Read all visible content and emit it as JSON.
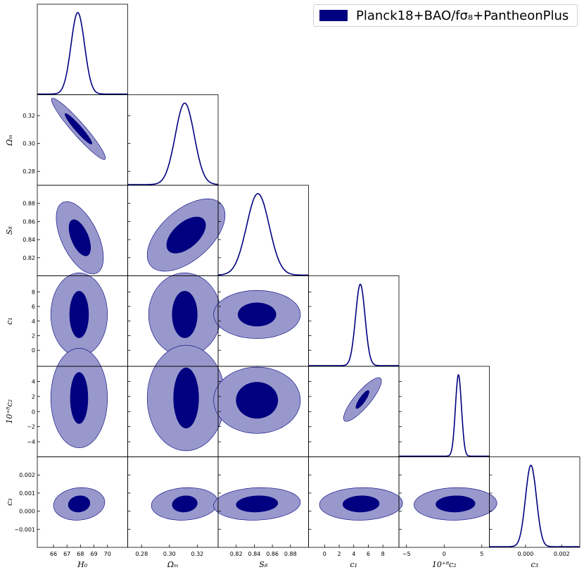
{
  "legend": {
    "label": "Planck18+BAO/fσ₈+PantheonPlus"
  },
  "colors": {
    "dark": "#000080",
    "light": "#9898cc",
    "frame": "#000000"
  },
  "chart_data": {
    "type": "triangle-corner",
    "title": "",
    "series": [
      {
        "name": "Planck18+BAO/fσ₈+PantheonPlus"
      }
    ],
    "parameters": [
      {
        "key": "H0",
        "label": "H₀",
        "range": [
          64.8,
          71.5
        ],
        "ticks": [
          66,
          67,
          68,
          69,
          70
        ],
        "tick_labels": [
          "66",
          "67",
          "68",
          "69",
          "70"
        ],
        "mean": 67.8,
        "sd": 0.5
      },
      {
        "key": "Om",
        "label": "Ωₘ",
        "range": [
          0.27,
          0.335
        ],
        "ticks": [
          0.28,
          0.3,
          0.32
        ],
        "tick_labels": [
          "0.28",
          "0.30",
          "0.32"
        ],
        "mean": 0.311,
        "sd": 0.0068
      },
      {
        "key": "S8",
        "label": "S₈",
        "range": [
          0.8,
          0.9
        ],
        "ticks": [
          0.82,
          0.84,
          0.86,
          0.88
        ],
        "tick_labels": [
          "0.82",
          "0.84",
          "0.86",
          "0.88"
        ],
        "mean": 0.844,
        "sd": 0.0125
      },
      {
        "key": "c1",
        "label": "c₁",
        "range": [
          -2.2,
          10.2
        ],
        "ticks": [
          0,
          2,
          4,
          6,
          8
        ],
        "tick_labels": [
          "0",
          "2",
          "4",
          "6",
          "8"
        ],
        "mean": 4.9,
        "sd": 0.65
      },
      {
        "key": "c2",
        "label": "10⁺⁸c₂",
        "range": [
          -6.0,
          6.0
        ],
        "ticks": [
          -4,
          -2,
          0,
          2,
          4
        ],
        "tick_labels": [
          "−4",
          "−2",
          "0",
          "2",
          "4"
        ],
        "diag_ticks": [
          -5,
          0,
          5
        ],
        "diag_tick_labels": [
          "−5",
          "0",
          "5"
        ],
        "mean": 1.9,
        "sd": 0.4
      },
      {
        "key": "c3",
        "label": "c₃",
        "range": [
          -0.002,
          0.003
        ],
        "ticks": [
          -0.001,
          0.0,
          0.001,
          0.002
        ],
        "tick_labels": [
          "−0.001",
          "0.000",
          "0.001",
          "0.002"
        ],
        "diag_ticks": [
          0.0,
          0.002
        ],
        "diag_tick_labels": [
          "0.000",
          "0.002"
        ],
        "mean": 0.0003,
        "sd": 0.0003
      }
    ],
    "contours_2d": [
      {
        "x": "H0",
        "y": "Om",
        "cx": 67.85,
        "cy": 0.3105,
        "r68": [
          1.0,
          0.011
        ],
        "r95": [
          2.0,
          0.022
        ],
        "corr": -0.95
      },
      {
        "x": "H0",
        "y": "S8",
        "cx": 67.95,
        "cy": 0.842,
        "r68": [
          0.8,
          0.02
        ],
        "r95": [
          1.75,
          0.04
        ],
        "corr": -0.55
      },
      {
        "x": "Om",
        "y": "S8",
        "cx": 0.312,
        "cy": 0.845,
        "r68": [
          0.014,
          0.02
        ],
        "r95": [
          0.028,
          0.04
        ],
        "corr": 0.55
      },
      {
        "x": "H0",
        "y": "c1",
        "cx": 67.9,
        "cy": 4.9,
        "r68": [
          0.7,
          3.2
        ],
        "r95": [
          2.1,
          5.7
        ],
        "corr": 0
      },
      {
        "x": "Om",
        "y": "c1",
        "cx": 0.311,
        "cy": 4.9,
        "r68": [
          0.009,
          3.2
        ],
        "r95": [
          0.026,
          5.7
        ],
        "corr": 0
      },
      {
        "x": "S8",
        "y": "c1",
        "cx": 0.843,
        "cy": 4.9,
        "r68": [
          0.021,
          1.6
        ],
        "r95": [
          0.048,
          3.3
        ],
        "corr": 0
      },
      {
        "x": "H0",
        "y": "c2",
        "cx": 67.9,
        "cy": 1.8,
        "r68": [
          0.65,
          3.4
        ],
        "r95": [
          2.1,
          6.6
        ],
        "corr": 0
      },
      {
        "x": "Om",
        "y": "c2",
        "cx": 0.312,
        "cy": 1.8,
        "r68": [
          0.009,
          4.0
        ],
        "r95": [
          0.028,
          7.0
        ],
        "corr": 0
      },
      {
        "x": "S8",
        "y": "c2",
        "cx": 0.843,
        "cy": 1.5,
        "r68": [
          0.023,
          2.4
        ],
        "r95": [
          0.048,
          4.4
        ],
        "corr": 0
      },
      {
        "x": "c1",
        "y": "c2",
        "cx": 5.2,
        "cy": 1.6,
        "r68": [
          0.9,
          1.2
        ],
        "r95": [
          2.6,
          2.9
        ],
        "corr": 0.85
      },
      {
        "x": "H0",
        "y": "c3",
        "cx": 67.9,
        "cy": 0.0004,
        "r68": [
          0.8,
          0.00045
        ],
        "r95": [
          1.9,
          0.0009
        ],
        "corr": 0.1
      },
      {
        "x": "Om",
        "y": "c3",
        "cx": 0.311,
        "cy": 0.0004,
        "r68": [
          0.009,
          0.00045
        ],
        "r95": [
          0.024,
          0.0009
        ],
        "corr": 0.1
      },
      {
        "x": "S8",
        "y": "c3",
        "cx": 0.843,
        "cy": 0.0004,
        "r68": [
          0.023,
          0.00045
        ],
        "r95": [
          0.048,
          0.0009
        ],
        "corr": 0.1
      },
      {
        "x": "c1",
        "y": "c3",
        "cx": 5.0,
        "cy": 0.0004,
        "r68": [
          2.5,
          0.00045
        ],
        "r95": [
          5.7,
          0.0009
        ],
        "corr": 0.05
      },
      {
        "x": "c2",
        "y": "c3",
        "cx": 1.5,
        "cy": 0.0004,
        "r68": [
          2.6,
          0.00045
        ],
        "r95": [
          5.5,
          0.0009
        ],
        "corr": 0.05
      }
    ]
  }
}
